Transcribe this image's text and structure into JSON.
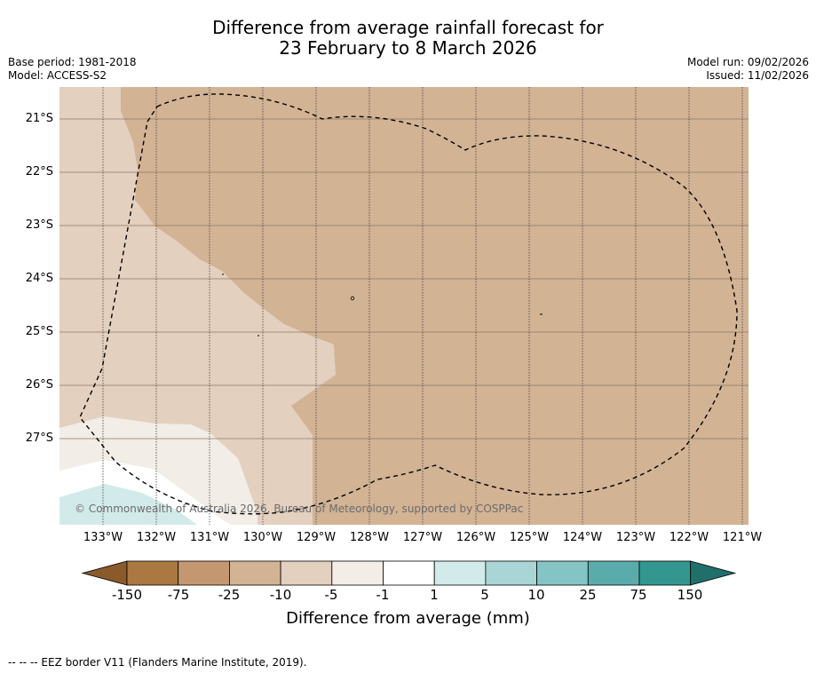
{
  "title": {
    "line1": "Difference from average rainfall forecast for",
    "line2": "23 February to 8 March 2026"
  },
  "meta_left": {
    "base_period": "Base period: 1981-2018",
    "model": "Model: ACCESS-S2"
  },
  "meta_right": {
    "model_run": "Model run: 09/02/2026",
    "issued": "Issued: 11/02/2026"
  },
  "map": {
    "latitude_labels": [
      "21°S",
      "22°S",
      "23°S",
      "24°S",
      "25°S",
      "26°S",
      "27°S"
    ],
    "longitude_labels": [
      "133°W",
      "132°W",
      "131°W",
      "130°W",
      "129°W",
      "128°W",
      "127°W",
      "126°W",
      "125°W",
      "124°W",
      "123°W",
      "122°W",
      "121°W"
    ],
    "copyright": "© Commonwealth of Australia 2026, Bureau of Meteorology, supported by COSPPac"
  },
  "colorbar": {
    "labels": [
      "-150",
      "-75",
      "-25",
      "-10",
      "-5",
      "-1",
      "1",
      "5",
      "10",
      "25",
      "75",
      "150"
    ],
    "colors": [
      "#8b5a2b",
      "#ac7841",
      "#c39870",
      "#d2b394",
      "#e4d0bf",
      "#f2ede6",
      "#ffffff",
      "#d3eaea",
      "#a9d5d6",
      "#84c4c4",
      "#5aacab",
      "#33978f",
      "#216f6b"
    ],
    "label": "Difference from average (mm)"
  },
  "footer": {
    "eez_note": "--  --  -- EEZ border V11 (Flanders Marine Institute, 2019)."
  }
}
